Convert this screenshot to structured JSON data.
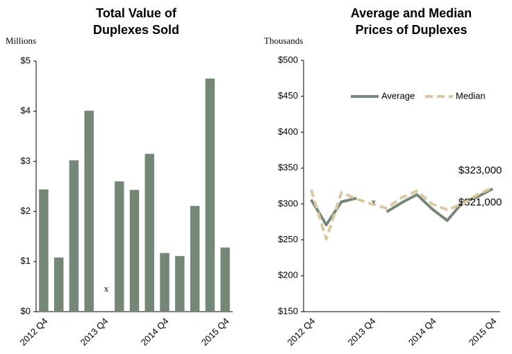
{
  "chart_data": [
    {
      "type": "bar",
      "title": [
        "Total Value of",
        "Duplexes Sold"
      ],
      "y_label": "Millions",
      "categories": [
        "2012 Q4",
        null,
        null,
        null,
        "2013 Q4",
        null,
        null,
        null,
        "2014 Q4",
        null,
        null,
        null,
        "2015 Q4"
      ],
      "values": [
        2.44,
        1.08,
        3.02,
        4.01,
        null,
        2.6,
        2.43,
        3.15,
        1.17,
        1.11,
        2.11,
        4.65,
        1.28
      ],
      "color": "#758878",
      "annotations": [
        {
          "text": "x",
          "category": 4
        }
      ],
      "ylim": [
        0,
        5
      ],
      "yticks": [
        {
          "value": 0,
          "label": "$0"
        },
        {
          "value": 1,
          "label": "$1"
        },
        {
          "value": 2,
          "label": "$2"
        },
        {
          "value": 3,
          "label": "$3"
        },
        {
          "value": 4,
          "label": "$4"
        },
        {
          "value": 5,
          "label": "$5"
        }
      ]
    },
    {
      "type": "line",
      "title": [
        "Average and Median",
        "Prices of Duplexes"
      ],
      "y_label": "Thousands",
      "categories": [
        "2012 Q4",
        null,
        null,
        null,
        "2013 Q4",
        null,
        null,
        null,
        "2014 Q4",
        null,
        null,
        null,
        "2015 Q4"
      ],
      "series": [
        {
          "name": "Average",
          "color": "#758878",
          "values": [
            306,
            271,
            303,
            308,
            null,
            289,
            302,
            313,
            293,
            277,
            302,
            310,
            321
          ],
          "value_labels": [
            null,
            null,
            null,
            null,
            null,
            null,
            null,
            null,
            null,
            null,
            null,
            null,
            "$321,000"
          ]
        },
        {
          "name": "Median",
          "color": "#dcc8a0",
          "dashed": true,
          "values": [
            320,
            251,
            316,
            307,
            300,
            294,
            309,
            318,
            300,
            292,
            300,
            313,
            323
          ],
          "value_labels": [
            null,
            null,
            null,
            null,
            null,
            null,
            null,
            null,
            null,
            null,
            null,
            null,
            "$323,000"
          ]
        }
      ],
      "annotations": [
        {
          "text": "x",
          "category": 4
        }
      ],
      "legend": "top-right",
      "ylim": [
        150,
        500
      ],
      "yticks": [
        {
          "value": 150,
          "label": "$150"
        },
        {
          "value": 200,
          "label": "$200"
        },
        {
          "value": 250,
          "label": "$250"
        },
        {
          "value": 300,
          "label": "$300"
        },
        {
          "value": 350,
          "label": "$350"
        },
        {
          "value": 400,
          "label": "$400"
        },
        {
          "value": 450,
          "label": "$450"
        },
        {
          "value": 500,
          "label": "$500"
        }
      ]
    }
  ]
}
